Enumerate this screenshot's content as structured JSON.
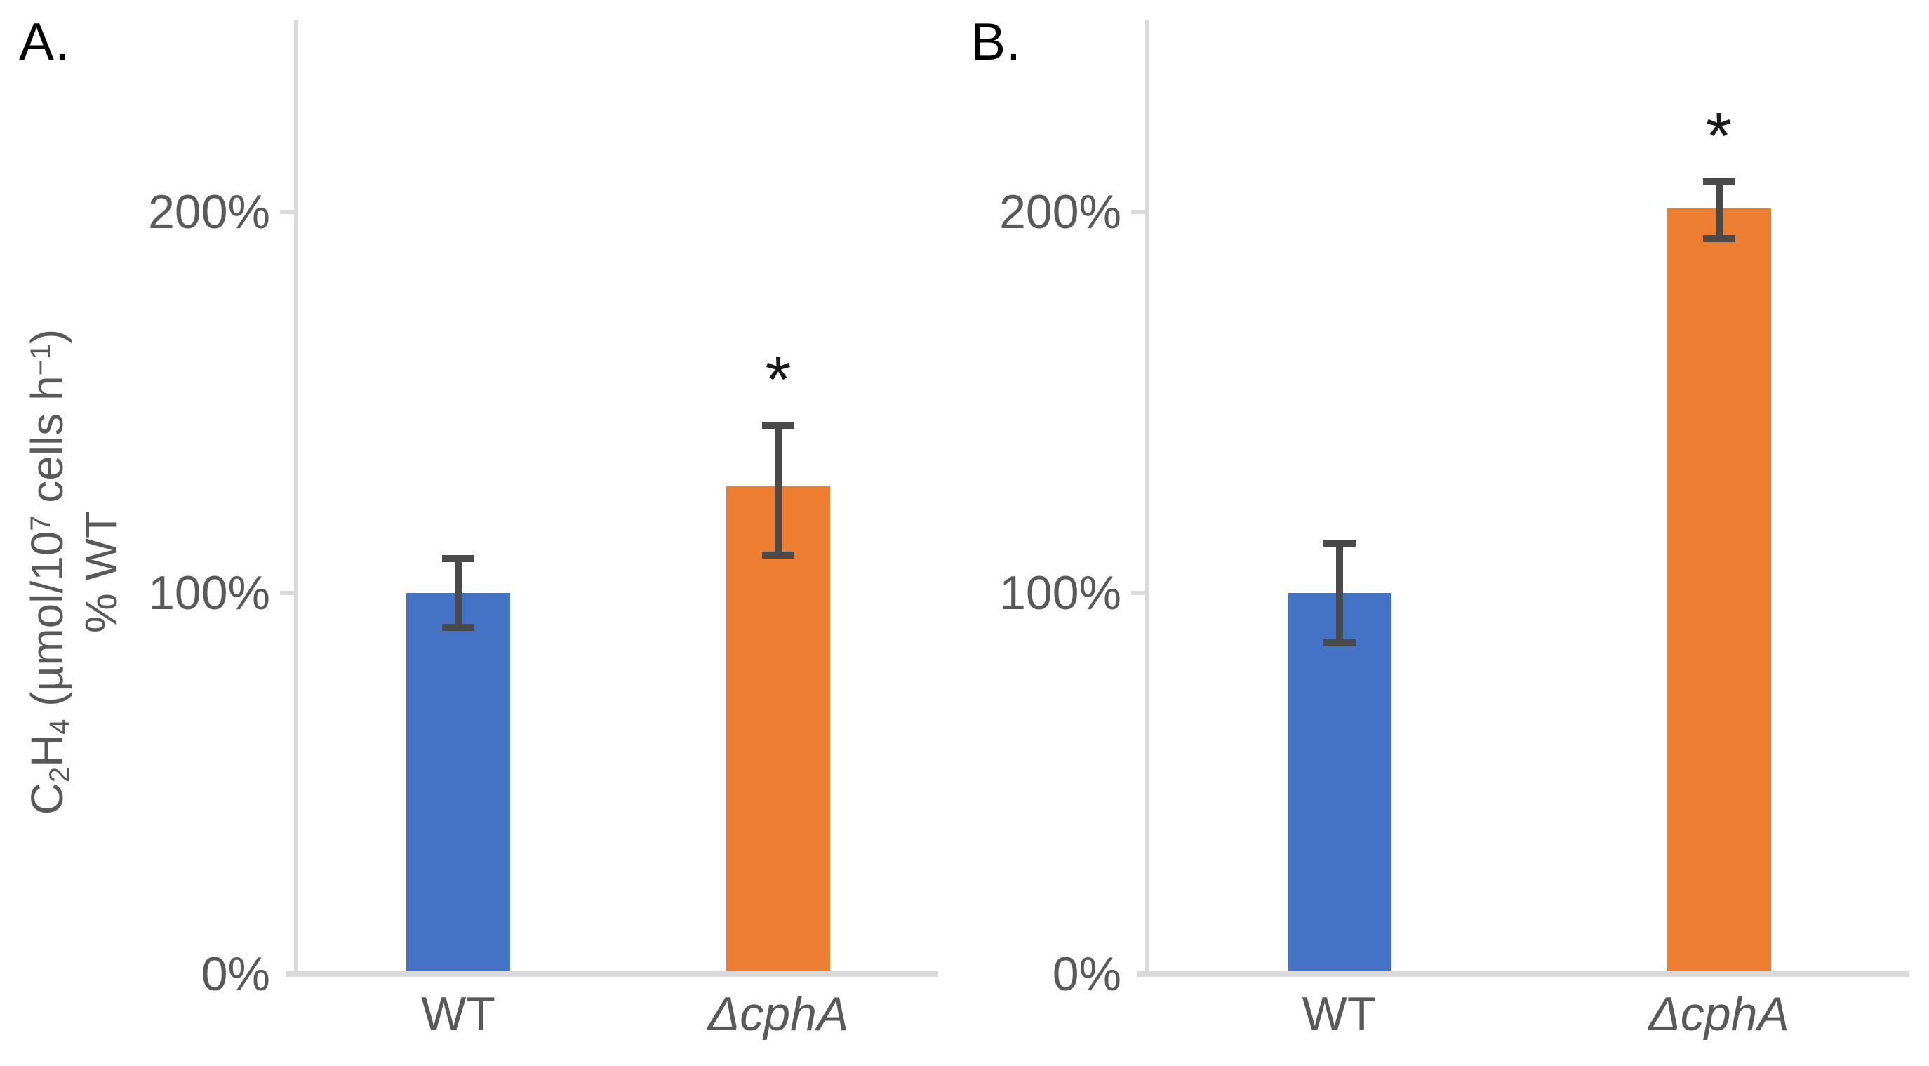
{
  "figure": {
    "background": "#ffffff",
    "panels": [
      {
        "id": "A",
        "label": "A."
      },
      {
        "id": "B",
        "label": "B."
      }
    ],
    "ylabel_line1_parts": [
      {
        "text": "C"
      },
      {
        "text": "2",
        "script": "sub"
      },
      {
        "text": "H"
      },
      {
        "text": "4",
        "script": "sub"
      },
      {
        "text": " (µmol/10"
      },
      {
        "text": "7",
        "script": "super"
      },
      {
        "text": " cells h"
      },
      {
        "text": "−1",
        "script": "super"
      },
      {
        "text": ")"
      }
    ],
    "ylabel_line2": "% WT"
  },
  "chart_data": [
    {
      "panel": "A",
      "type": "bar",
      "title": "",
      "ylabel": "C2H4 (µmol/10^7 cells h^-1), % WT",
      "categories": [
        "WT",
        "ΔcphA"
      ],
      "categories_italic": [
        false,
        true
      ],
      "values": [
        100,
        128
      ],
      "error_low": [
        91,
        110
      ],
      "error_high": [
        109,
        144
      ],
      "significance": [
        "",
        "*"
      ],
      "bar_colors": [
        "#4472C4",
        "#ED7D31"
      ],
      "yticks": [
        {
          "label": "0%",
          "value": 0
        },
        {
          "label": "100%",
          "value": 100
        },
        {
          "label": "200%",
          "value": 200
        }
      ],
      "ylim": [
        0,
        250
      ],
      "grid": false,
      "legend": "none"
    },
    {
      "panel": "B",
      "type": "bar",
      "title": "",
      "ylabel": "C2H4 (µmol/10^7 cells h^-1), % WT",
      "categories": [
        "WT",
        "ΔcphA"
      ],
      "categories_italic": [
        false,
        true
      ],
      "values": [
        100,
        201
      ],
      "error_low": [
        87,
        193
      ],
      "error_high": [
        113,
        208
      ],
      "significance": [
        "",
        "*"
      ],
      "bar_colors": [
        "#4472C4",
        "#ED7D31"
      ],
      "yticks": [
        {
          "label": "0%",
          "value": 0
        },
        {
          "label": "100%",
          "value": 100
        },
        {
          "label": "200%",
          "value": 200
        }
      ],
      "ylim": [
        0,
        250
      ],
      "grid": false,
      "legend": "none"
    }
  ],
  "style": {
    "bar_blue": "#4472C4",
    "bar_orange": "#ED7D31",
    "error_bar_color": "#4a4a4a",
    "axis_line_color": "#D9D9D9",
    "tick_label_color": "#595959",
    "category_label_color": "#595959",
    "panel_label_color": "#000000",
    "asterisk_color": "#1a1a1a"
  }
}
